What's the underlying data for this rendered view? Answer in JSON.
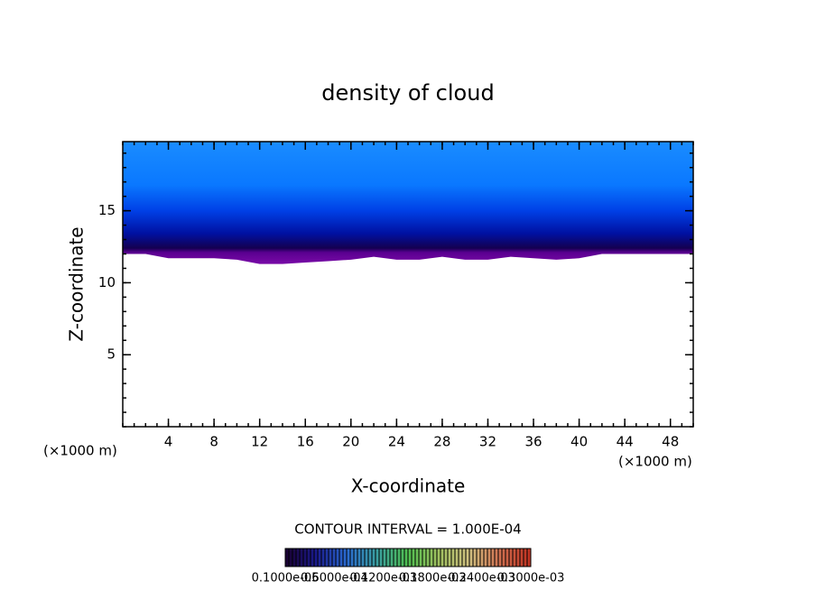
{
  "chart_data": {
    "type": "contour",
    "title": "density of cloud",
    "xlabel": "X-coordinate",
    "ylabel": "Z-coordinate",
    "x_unit": "(×1000 m)",
    "x_unit_right": "(×1000 m)",
    "xlim": [
      0,
      50
    ],
    "ylim": [
      0,
      19.8
    ],
    "xticks": [
      4,
      8,
      12,
      16,
      20,
      24,
      28,
      32,
      36,
      40,
      44,
      48
    ],
    "yticks": [
      5,
      10,
      15
    ],
    "x": [
      0,
      2,
      4,
      6,
      8,
      10,
      12,
      14,
      16,
      18,
      20,
      22,
      24,
      26,
      28,
      30,
      32,
      34,
      36,
      38,
      40,
      42,
      44,
      46,
      48,
      50
    ],
    "cloud_base": [
      12.0,
      12.0,
      11.7,
      11.7,
      11.7,
      11.6,
      11.3,
      11.3,
      11.4,
      11.5,
      11.6,
      11.8,
      11.6,
      11.6,
      11.8,
      11.6,
      11.6,
      11.8,
      11.7,
      11.6,
      11.7,
      12.0,
      12.0,
      12.0,
      12.0,
      12.0
    ],
    "color_stops": [
      {
        "z": 11.3,
        "color": "#7a0aa8"
      },
      {
        "z": 12.1,
        "color": "#5a0090"
      },
      {
        "z": 12.4,
        "color": "#140050"
      },
      {
        "z": 13.4,
        "color": "#0010a0"
      },
      {
        "z": 15.0,
        "color": "#0040e6"
      },
      {
        "z": 16.8,
        "color": "#0a78ff"
      },
      {
        "z": 19.8,
        "color": "#1a8cff"
      }
    ],
    "contour_interval": "CONTOUR INTERVAL = 1.000E-04",
    "colorbar": {
      "colors": [
        "#1a0030",
        "#1a1a8c",
        "#2a6ad0",
        "#3aa0a0",
        "#50c050",
        "#a0c060",
        "#d0c080",
        "#d07050",
        "#c03020"
      ],
      "labels": [
        "0.1000e-05",
        "0.6000e-04",
        "0.1200e-03",
        "0.1800e-03",
        "0.2400e-03",
        "0.3000e-03"
      ]
    }
  }
}
